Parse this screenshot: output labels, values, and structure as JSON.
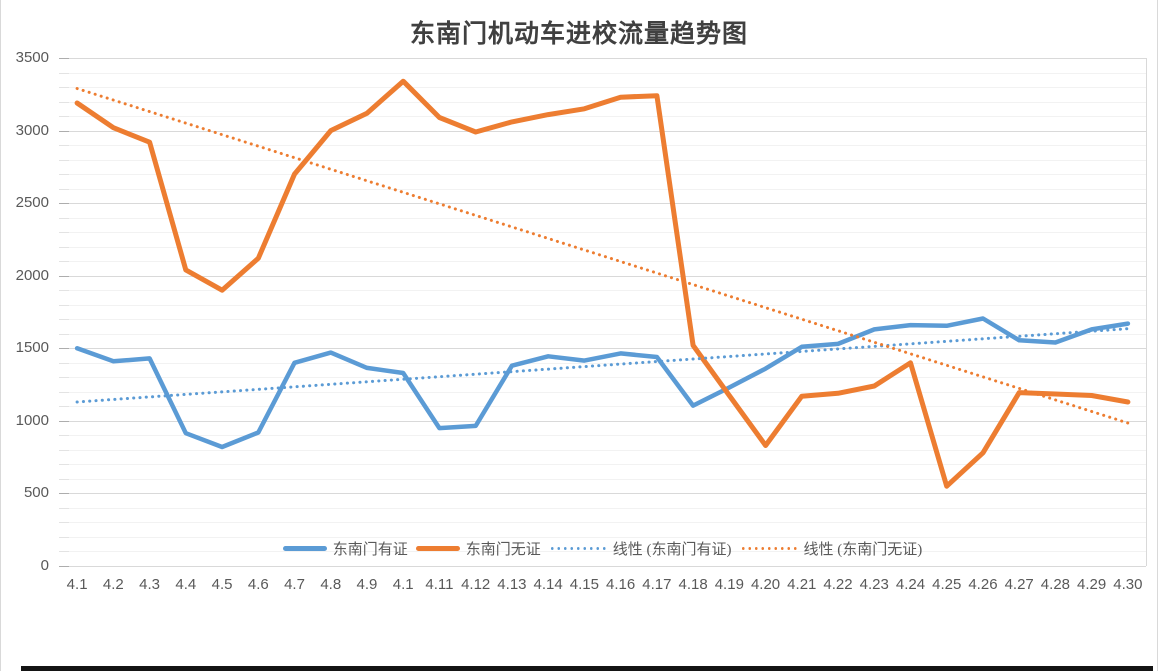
{
  "chart_data": {
    "type": "line",
    "title": "东南门机动车进校流量趋势图",
    "categories": [
      "4.1",
      "4.2",
      "4.3",
      "4.4",
      "4.5",
      "4.6",
      "4.7",
      "4.8",
      "4.9",
      "4.1",
      "4.11",
      "4.12",
      "4.13",
      "4.14",
      "4.15",
      "4.16",
      "4.17",
      "4.18",
      "4.19",
      "4.20",
      "4.21",
      "4.22",
      "4.23",
      "4.24",
      "4.25",
      "4.26",
      "4.27",
      "4.28",
      "4.29",
      "4.30"
    ],
    "series": [
      {
        "name": "东南门有证",
        "type": "line",
        "style": "solid",
        "color": "#5b9bd5",
        "values": [
          1500,
          1410,
          1430,
          915,
          820,
          920,
          1400,
          1470,
          1365,
          1330,
          950,
          965,
          1380,
          1445,
          1415,
          1465,
          1440,
          1105,
          1230,
          1360,
          1510,
          1530,
          1630,
          1660,
          1655,
          1705,
          1555,
          1540,
          1630,
          1670
        ]
      },
      {
        "name": "东南门无证",
        "type": "line",
        "style": "solid",
        "color": "#ed7d31",
        "values": [
          3190,
          3020,
          2920,
          2040,
          1900,
          2120,
          2700,
          3000,
          3120,
          3340,
          3090,
          2990,
          3060,
          3110,
          3150,
          3230,
          3240,
          1520,
          1175,
          830,
          1170,
          1190,
          1240,
          1400,
          550,
          780,
          1195,
          1185,
          1175,
          1130
        ]
      },
      {
        "name": "线性 (东南门有证)",
        "type": "linear-trendline",
        "style": "dotted",
        "color": "#5b9bd5",
        "trend": {
          "start": 1130,
          "end": 1635
        }
      },
      {
        "name": "线性 (东南门无证)",
        "type": "linear-trendline",
        "style": "dotted",
        "color": "#ed7d31",
        "trend": {
          "start": 3290,
          "end": 985
        }
      }
    ],
    "xlabel": "",
    "ylabel": "",
    "y_axis": {
      "min": 0,
      "max": 3500,
      "major_step": 500,
      "minor_step": 100,
      "tick_labels": [
        "0",
        "500",
        "1000",
        "1500",
        "2000",
        "2500",
        "3000",
        "3500"
      ]
    },
    "grid": {
      "major": true,
      "minor": true
    },
    "legend_position": "bottom-inside"
  },
  "colors": {
    "accent_blue": "#5b9bd5",
    "accent_orange": "#ed7d31",
    "grid_major": "#d9d9d9",
    "grid_minor": "#f2f2f2",
    "text_gray": "#595959",
    "title_gray": "#404040"
  }
}
